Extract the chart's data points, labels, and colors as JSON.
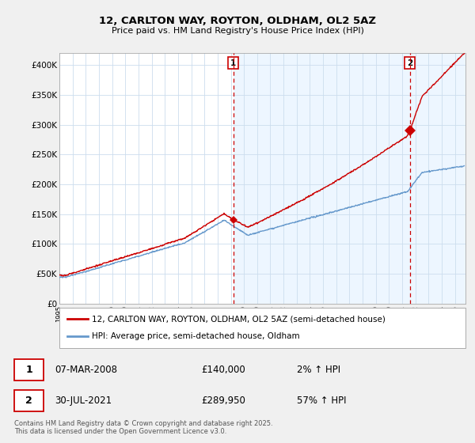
{
  "title": "12, CARLTON WAY, ROYTON, OLDHAM, OL2 5AZ",
  "subtitle": "Price paid vs. HM Land Registry's House Price Index (HPI)",
  "ylim": [
    0,
    420000
  ],
  "yticks": [
    0,
    50000,
    100000,
    150000,
    200000,
    250000,
    300000,
    350000,
    400000
  ],
  "ytick_labels": [
    "£0",
    "£50K",
    "£100K",
    "£150K",
    "£200K",
    "£250K",
    "£300K",
    "£350K",
    "£400K"
  ],
  "xlim_start": 1995.0,
  "xlim_end": 2025.8,
  "line_red": "#cc0000",
  "line_blue": "#6699cc",
  "bg_light_blue": "#ddeeff",
  "plot_bg": "#ffffff",
  "grid_color": "#ccddee",
  "dashed_color": "#cc0000",
  "marker1_year": 2008.18,
  "marker1_val": 140000,
  "marker2_year": 2021.575,
  "marker2_val": 289950,
  "legend_label1": "12, CARLTON WAY, ROYTON, OLDHAM, OL2 5AZ (semi-detached house)",
  "legend_label2": "HPI: Average price, semi-detached house, Oldham",
  "table_row1": [
    "1",
    "07-MAR-2008",
    "£140,000",
    "2% ↑ HPI"
  ],
  "table_row2": [
    "2",
    "30-JUL-2021",
    "£289,950",
    "57% ↑ HPI"
  ],
  "footer": "Contains HM Land Registry data © Crown copyright and database right 2025.\nThis data is licensed under the Open Government Licence v3.0.",
  "fig_bg": "#f0f0f0"
}
